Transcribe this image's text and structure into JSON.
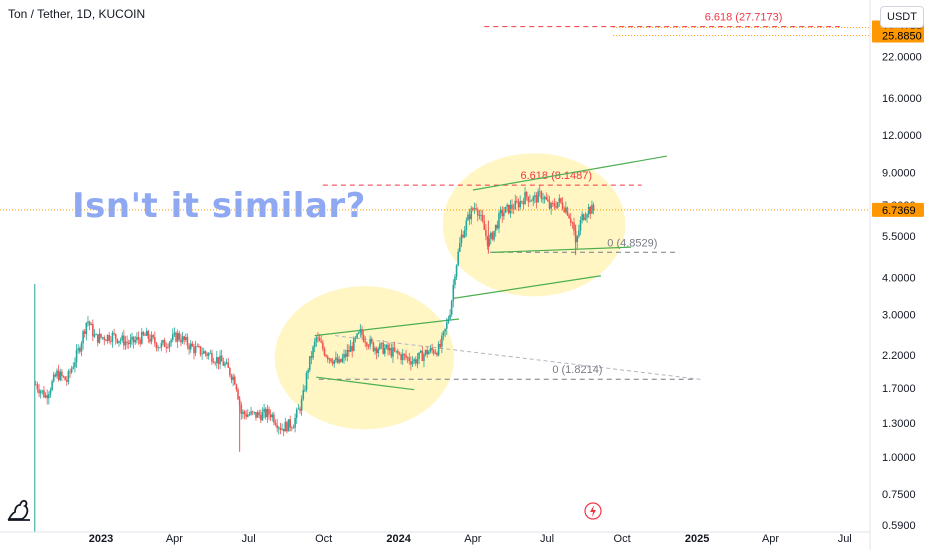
{
  "header": {
    "symbol": "Ton / Tether, 1D, KUCOIN",
    "currency": "USDT"
  },
  "annotation": {
    "headline": "Isn't it similar?"
  },
  "colors": {
    "up": "#26a69a",
    "down": "#ef5350",
    "trendline": "#4caf50",
    "fib_target": "#f23645",
    "highlight": "#fff3b0",
    "price_label": "#ff9800",
    "accent_text": "#8fa8f2"
  },
  "icons": {
    "logo": "tradingview-dino-icon",
    "lightning": "lightning-icon"
  },
  "chart_data": {
    "type": "candlestick",
    "title": "Ton / Tether, 1D, KUCOIN",
    "y_scale": "log",
    "ylim": [
      0.56,
      32
    ],
    "xlim": [
      "2022-10-01",
      "2025-08-01"
    ],
    "grid": false,
    "y_ticks": [
      "22.0000",
      "16.0000",
      "12.0000",
      "9.0000",
      "7.0000",
      "5.5000",
      "4.0000",
      "3.0000",
      "2.2000",
      "1.7000",
      "1.3000",
      "1.0000",
      "0.7500",
      "0.5900"
    ],
    "x_ticks": [
      {
        "label": "2023",
        "date": "2023-01-01",
        "bold": true
      },
      {
        "label": "Apr",
        "date": "2023-04-01",
        "bold": false
      },
      {
        "label": "Jul",
        "date": "2023-07-01",
        "bold": false
      },
      {
        "label": "Oct",
        "date": "2023-10-01",
        "bold": false
      },
      {
        "label": "2024",
        "date": "2024-01-01",
        "bold": true
      },
      {
        "label": "Apr",
        "date": "2024-04-01",
        "bold": false
      },
      {
        "label": "Jul",
        "date": "2024-07-01",
        "bold": false
      },
      {
        "label": "Oct",
        "date": "2024-10-01",
        "bold": false
      },
      {
        "label": "2025",
        "date": "2025-01-01",
        "bold": true
      },
      {
        "label": "Apr",
        "date": "2025-04-01",
        "bold": false
      },
      {
        "label": "Jul",
        "date": "2025-07-01",
        "bold": false
      }
    ],
    "price_path": [
      [
        "2022-10-13",
        1.75
      ],
      [
        "2022-10-25",
        1.6
      ],
      [
        "2022-11-08",
        1.9
      ],
      [
        "2022-11-20",
        1.8
      ],
      [
        "2022-12-05",
        2.3
      ],
      [
        "2022-12-15",
        2.9
      ],
      [
        "2022-12-25",
        2.5
      ],
      [
        "2023-01-15",
        2.55
      ],
      [
        "2023-02-05",
        2.4
      ],
      [
        "2023-02-25",
        2.55
      ],
      [
        "2023-03-15",
        2.35
      ],
      [
        "2023-04-05",
        2.55
      ],
      [
        "2023-04-25",
        2.3
      ],
      [
        "2023-05-15",
        2.2
      ],
      [
        "2023-06-01",
        2.05
      ],
      [
        "2023-06-15",
        1.8
      ],
      [
        "2023-06-22",
        1.4
      ],
      [
        "2023-07-10",
        1.38
      ],
      [
        "2023-07-28",
        1.4
      ],
      [
        "2023-08-10",
        1.25
      ],
      [
        "2023-08-25",
        1.3
      ],
      [
        "2023-09-05",
        1.55
      ],
      [
        "2023-09-12",
        2.0
      ],
      [
        "2023-09-22",
        2.5
      ],
      [
        "2023-10-05",
        2.2
      ],
      [
        "2023-10-20",
        2.05
      ],
      [
        "2023-11-05",
        2.35
      ],
      [
        "2023-11-15",
        2.6
      ],
      [
        "2023-11-30",
        2.35
      ],
      [
        "2023-12-15",
        2.3
      ],
      [
        "2024-01-01",
        2.2
      ],
      [
        "2024-01-20",
        2.1
      ],
      [
        "2024-02-05",
        2.25
      ],
      [
        "2024-02-20",
        2.3
      ],
      [
        "2024-02-28",
        2.7
      ],
      [
        "2024-03-05",
        3.2
      ],
      [
        "2024-03-10",
        4.2
      ],
      [
        "2024-03-18",
        5.5
      ],
      [
        "2024-03-28",
        6.5
      ],
      [
        "2024-04-05",
        7.0
      ],
      [
        "2024-04-13",
        6.0
      ],
      [
        "2024-04-20",
        5.2
      ],
      [
        "2024-04-28",
        5.8
      ],
      [
        "2024-05-05",
        6.5
      ],
      [
        "2024-05-15",
        6.8
      ],
      [
        "2024-05-25",
        7.0
      ],
      [
        "2024-06-05",
        7.5
      ],
      [
        "2024-06-15",
        7.3
      ],
      [
        "2024-06-25",
        7.6
      ],
      [
        "2024-07-05",
        6.8
      ],
      [
        "2024-07-15",
        7.2
      ],
      [
        "2024-07-25",
        6.8
      ],
      [
        "2024-08-02",
        6.0
      ],
      [
        "2024-08-05",
        5.1
      ],
      [
        "2024-08-12",
        6.3
      ],
      [
        "2024-08-20",
        6.8
      ],
      [
        "2024-08-28",
        6.7
      ]
    ],
    "price_labels": [
      {
        "price": 27.5199,
        "label": "27.5199",
        "color": "#ff9800"
      },
      {
        "price": 25.885,
        "label": "25.8850",
        "color": "#ff9800"
      },
      {
        "price": 6.7369,
        "label": "6.7369",
        "color": "#ff9800"
      }
    ],
    "current_price": 6.7369,
    "fib_levels": [
      {
        "label": "6.618 (27.7173)",
        "price": 27.7173,
        "start": "2024-04-15",
        "end": "2025-06-25",
        "color": "#f23645"
      },
      {
        "label": "6.618 (8.1487)",
        "price": 8.1487,
        "start": "2023-09-30",
        "end": "2024-10-25",
        "color": "#f23645"
      },
      {
        "label": "0 (4.8529)",
        "price": 4.8529,
        "start": "2024-04-22",
        "end": "2024-12-10",
        "color": "#787b86"
      },
      {
        "label": "0 (1.8214)",
        "price": 1.8214,
        "start": "2023-09-25",
        "end": "2024-12-30",
        "color": "#787b86"
      }
    ],
    "trendlines": [
      {
        "points": [
          [
            "2023-09-20",
            2.55
          ],
          [
            "2024-03-15",
            2.9
          ]
        ]
      },
      {
        "points": [
          [
            "2023-09-22",
            1.85
          ],
          [
            "2024-01-20",
            1.68
          ]
        ]
      },
      {
        "points": [
          [
            "2024-03-08",
            3.4
          ],
          [
            "2024-09-05",
            4.05
          ]
        ]
      },
      {
        "points": [
          [
            "2024-04-01",
            7.85
          ],
          [
            "2024-11-25",
            10.2
          ]
        ]
      },
      {
        "points": [
          [
            "2024-04-25",
            4.85
          ],
          [
            "2024-10-12",
            5.05
          ]
        ]
      }
    ],
    "grey_dashed": {
      "points": [
        [
          "2023-10-15",
          2.55
        ],
        [
          "2025-01-05",
          1.82
        ]
      ]
    },
    "highlight_zones": [
      {
        "center": [
          "2023-11-20",
          2.15
        ],
        "rx_days": 110,
        "ry_log_span": 0.24
      },
      {
        "center": [
          "2024-06-15",
          6.0
        ],
        "rx_days": 112,
        "ry_log_span": 0.24
      }
    ]
  }
}
